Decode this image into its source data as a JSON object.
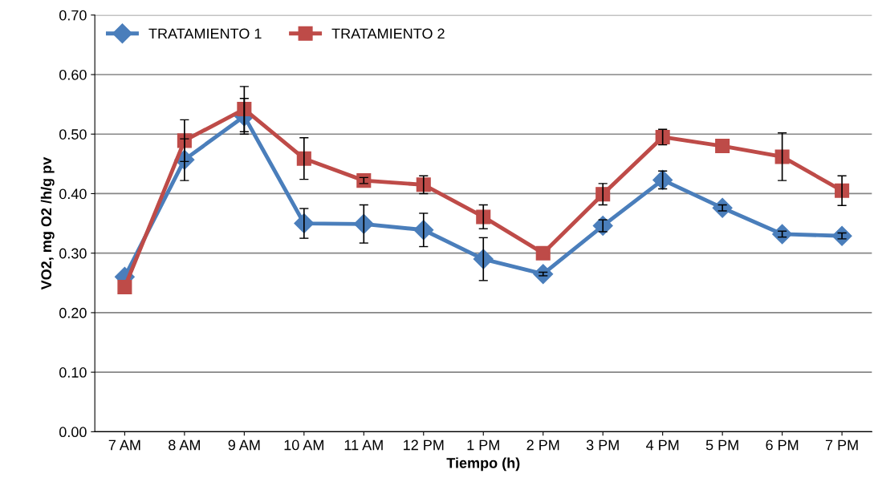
{
  "chart_data": {
    "type": "line",
    "xlabel": "Tiempo (h)",
    "ylabel": "VO2, mg O2 /h/g pv",
    "categories": [
      "7 AM",
      "8 AM",
      "9 AM",
      "10 AM",
      "11 AM",
      "12 PM",
      "1 PM",
      "2 PM",
      "3 PM",
      "4 PM",
      "5 PM",
      "6 PM",
      "7 PM"
    ],
    "series": [
      {
        "name": "TRATAMIENTO 1",
        "color": "#4a7ebb",
        "marker": "diamond",
        "values": [
          0.26,
          0.457,
          0.53,
          0.35,
          0.349,
          0.339,
          0.29,
          0.265,
          0.346,
          0.423,
          0.376,
          0.332,
          0.329
        ],
        "errors": [
          null,
          0.035,
          0.03,
          0.025,
          0.032,
          0.028,
          0.036,
          0.003,
          0.01,
          0.015,
          0.005,
          0.005,
          0.005
        ]
      },
      {
        "name": "TRATAMIENTO 2",
        "color": "#be4b48",
        "marker": "square",
        "values": [
          0.243,
          0.489,
          0.542,
          0.459,
          0.422,
          0.415,
          0.361,
          0.3,
          0.399,
          0.495,
          0.48,
          0.462,
          0.405
        ],
        "errors": [
          null,
          0.035,
          0.038,
          0.035,
          0.005,
          0.015,
          0.02,
          null,
          0.018,
          0.013,
          null,
          0.04,
          0.025
        ]
      }
    ],
    "ylim": [
      0,
      0.7
    ],
    "yticks": [
      {
        "value": 0,
        "label": "0.00"
      },
      {
        "value": 0.1,
        "label": "0.10"
      },
      {
        "value": 0.2,
        "label": "0.20"
      },
      {
        "value": 0.3,
        "label": "0.30"
      },
      {
        "value": 0.4,
        "label": "0.40"
      },
      {
        "value": 0.5,
        "label": "0.50"
      },
      {
        "value": 0.6,
        "label": "0.60"
      },
      {
        "value": 0.7,
        "label": "0.70"
      }
    ],
    "grid": "y",
    "legend": "top left",
    "line_style": "solid"
  }
}
